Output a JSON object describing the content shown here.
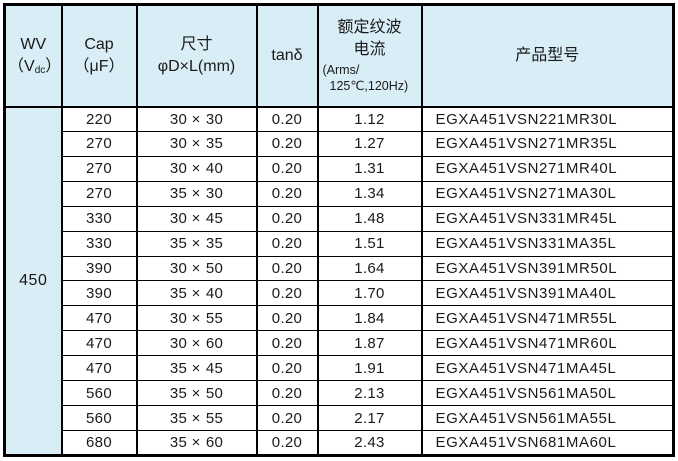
{
  "header": {
    "wv": {
      "line1": "WV",
      "open": "（V",
      "sub": "dc",
      "close": "）"
    },
    "cap": {
      "line1": "Cap",
      "line2": "（μF）"
    },
    "size": {
      "line1": "尺寸",
      "line2": "φD×L(mm)"
    },
    "tand": "tanδ",
    "ripple": {
      "line1": "额定纹波",
      "line2": "电流",
      "line3": "(Arms/",
      "line4": "125℃,120Hz)"
    },
    "part": "产品型号"
  },
  "wv_value": "450",
  "colors": {
    "header_bg": "#d8edf5",
    "border": "#000000",
    "text": "#1a1a1a",
    "row_bg": "#ffffff"
  },
  "rows": [
    {
      "cap": "220",
      "size": "30×30",
      "tand": "0.20",
      "ripple": "1.12",
      "part": "EGXA451VSN221MR30L"
    },
    {
      "cap": "270",
      "size": "30×35",
      "tand": "0.20",
      "ripple": "1.27",
      "part": "EGXA451VSN271MR35L"
    },
    {
      "cap": "270",
      "size": "30×40",
      "tand": "0.20",
      "ripple": "1.31",
      "part": "EGXA451VSN271MR40L"
    },
    {
      "cap": "270",
      "size": "35×30",
      "tand": "0.20",
      "ripple": "1.34",
      "part": "EGXA451VSN271MA30L"
    },
    {
      "cap": "330",
      "size": "30×45",
      "tand": "0.20",
      "ripple": "1.48",
      "part": "EGXA451VSN331MR45L"
    },
    {
      "cap": "330",
      "size": "35×35",
      "tand": "0.20",
      "ripple": "1.51",
      "part": "EGXA451VSN331MA35L"
    },
    {
      "cap": "390",
      "size": "30×50",
      "tand": "0.20",
      "ripple": "1.64",
      "part": "EGXA451VSN391MR50L"
    },
    {
      "cap": "390",
      "size": "35×40",
      "tand": "0.20",
      "ripple": "1.70",
      "part": "EGXA451VSN391MA40L"
    },
    {
      "cap": "470",
      "size": "30×55",
      "tand": "0.20",
      "ripple": "1.84",
      "part": "EGXA451VSN471MR55L"
    },
    {
      "cap": "470",
      "size": "30×60",
      "tand": "0.20",
      "ripple": "1.87",
      "part": "EGXA451VSN471MR60L"
    },
    {
      "cap": "470",
      "size": "35×45",
      "tand": "0.20",
      "ripple": "1.91",
      "part": "EGXA451VSN471MA45L"
    },
    {
      "cap": "560",
      "size": "35×50",
      "tand": "0.20",
      "ripple": "2.13",
      "part": "EGXA451VSN561MA50L"
    },
    {
      "cap": "560",
      "size": "35×55",
      "tand": "0.20",
      "ripple": "2.17",
      "part": "EGXA451VSN561MA55L"
    },
    {
      "cap": "680",
      "size": "35×60",
      "tand": "0.20",
      "ripple": "2.43",
      "part": "EGXA451VSN681MA60L"
    }
  ]
}
